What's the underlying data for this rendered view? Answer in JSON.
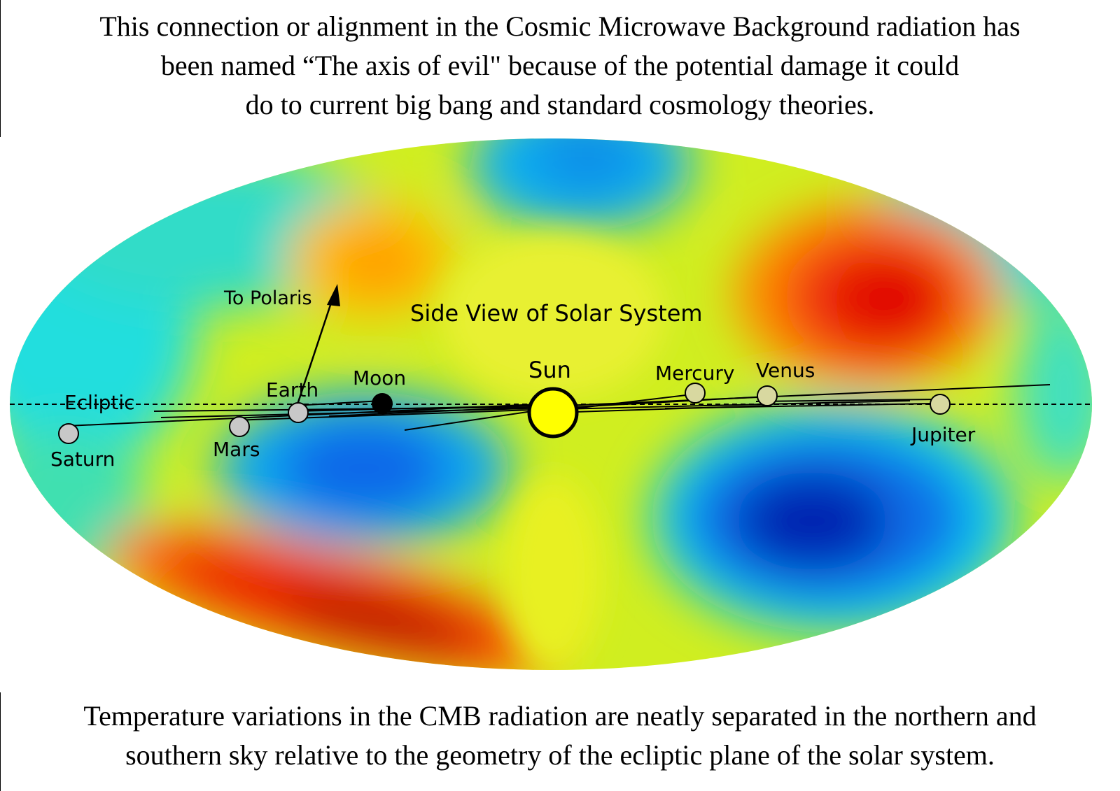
{
  "top_caption": {
    "lines": [
      "This connection or alignment in the Cosmic Microwave Background radiation has",
      "been named “The axis of evil\" because of the potential damage it could",
      "do to current big bang and standard cosmology theories."
    ]
  },
  "diagram": {
    "heading": "Side View of Solar System",
    "ecliptic_label": "Ecliptic",
    "polaris_label": "To Polaris",
    "bodies": {
      "sun": "Sun",
      "mercury": "Mercury",
      "venus": "Venus",
      "earth": "Earth",
      "moon": "Moon",
      "mars": "Mars",
      "jupiter": "Jupiter",
      "saturn": "Saturn"
    },
    "colors": {
      "sun": "#ffff00",
      "planet": "#c8c8c8",
      "moon": "#000000",
      "hot": "#e00000",
      "warm": "#ffaa00",
      "neutral": "#f0f000",
      "cool": "#00e0e0",
      "cold": "#0050e0",
      "coldest": "#00007a"
    }
  },
  "bottom_caption": {
    "lines": [
      "Temperature variations in the CMB radiation are neatly separated in the northern and",
      "southern sky relative to the geometry of the ecliptic plane of the solar system."
    ]
  }
}
